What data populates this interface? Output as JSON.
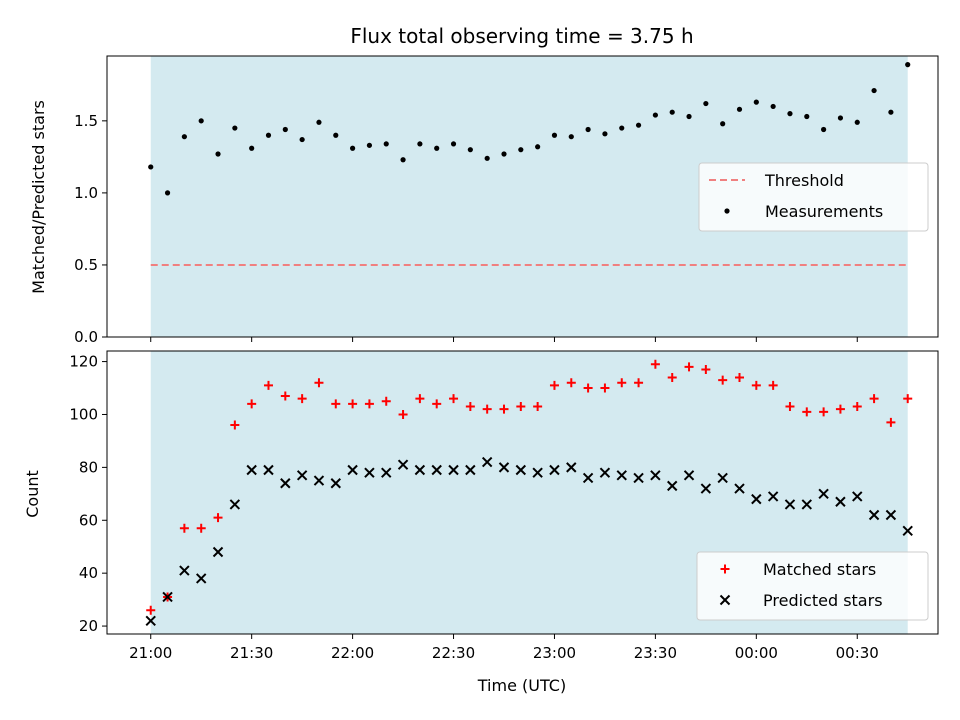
{
  "chart_data": {
    "title": "Flux total observing time = 3.75 h",
    "xlabel": "Time (UTC)",
    "x_tick_labels": [
      "21:00",
      "21:30",
      "22:00",
      "22:30",
      "23:00",
      "23:30",
      "00:00",
      "00:30"
    ],
    "observing_window": [
      "21:00",
      "00:45"
    ],
    "colors": {
      "window": "#d4eaf0",
      "threshold": "#f08080",
      "measurements": "#000000",
      "matched": "#ff0000",
      "predicted": "#000000"
    },
    "charts": [
      {
        "type": "scatter",
        "ylabel": "Matched/Predicted stars",
        "ylim": [
          0,
          1.95
        ],
        "y_ticks": [
          0,
          0.5,
          1.0,
          1.5
        ],
        "y_tick_labels": [
          "0.0",
          "0.5",
          "1.0",
          "1.5"
        ],
        "legend_position": "center-right",
        "threshold": {
          "name": "Threshold",
          "value": 0.5
        },
        "series": [
          {
            "name": "Measurements",
            "x": [
              "21:00",
              "21:05",
              "21:10",
              "21:15",
              "21:20",
              "21:25",
              "21:30",
              "21:35",
              "21:40",
              "21:45",
              "21:50",
              "21:55",
              "22:00",
              "22:05",
              "22:10",
              "22:15",
              "22:20",
              "22:25",
              "22:30",
              "22:35",
              "22:40",
              "22:45",
              "22:50",
              "22:55",
              "23:00",
              "23:05",
              "23:10",
              "23:15",
              "23:20",
              "23:25",
              "23:30",
              "23:35",
              "23:40",
              "23:45",
              "23:50",
              "23:55",
              "00:00",
              "00:05",
              "00:10",
              "00:15",
              "00:20",
              "00:25",
              "00:30",
              "00:35",
              "00:40",
              "00:45"
            ],
            "values": [
              1.18,
              1.0,
              1.39,
              1.5,
              1.27,
              1.45,
              1.31,
              1.4,
              1.44,
              1.37,
              1.49,
              1.4,
              1.31,
              1.33,
              1.34,
              1.23,
              1.34,
              1.31,
              1.34,
              1.3,
              1.24,
              1.27,
              1.3,
              1.32,
              1.4,
              1.39,
              1.44,
              1.41,
              1.45,
              1.47,
              1.54,
              1.56,
              1.53,
              1.62,
              1.48,
              1.58,
              1.63,
              1.6,
              1.55,
              1.53,
              1.44,
              1.52,
              1.49,
              1.71,
              1.56,
              1.89
            ]
          }
        ]
      },
      {
        "type": "scatter",
        "ylabel": "Count",
        "ylim": [
          17,
          124
        ],
        "y_ticks": [
          20,
          40,
          60,
          80,
          100,
          120
        ],
        "y_tick_labels": [
          "20",
          "40",
          "60",
          "80",
          "100",
          "120"
        ],
        "legend_position": "lower-right",
        "series": [
          {
            "name": "Matched stars",
            "marker": "+",
            "x": [
              "21:00",
              "21:05",
              "21:10",
              "21:15",
              "21:20",
              "21:25",
              "21:30",
              "21:35",
              "21:40",
              "21:45",
              "21:50",
              "21:55",
              "22:00",
              "22:05",
              "22:10",
              "22:15",
              "22:20",
              "22:25",
              "22:30",
              "22:35",
              "22:40",
              "22:45",
              "22:50",
              "22:55",
              "23:00",
              "23:05",
              "23:10",
              "23:15",
              "23:20",
              "23:25",
              "23:30",
              "23:35",
              "23:40",
              "23:45",
              "23:50",
              "23:55",
              "00:00",
              "00:05",
              "00:10",
              "00:15",
              "00:20",
              "00:25",
              "00:30",
              "00:35",
              "00:40",
              "00:45"
            ],
            "values": [
              26,
              31,
              57,
              57,
              61,
              96,
              104,
              111,
              107,
              106,
              112,
              104,
              104,
              104,
              105,
              100,
              106,
              104,
              106,
              103,
              102,
              102,
              103,
              103,
              111,
              112,
              110,
              110,
              112,
              112,
              119,
              114,
              118,
              117,
              113,
              114,
              111,
              111,
              103,
              101,
              101,
              102,
              103,
              106,
              97,
              106
            ]
          },
          {
            "name": "Predicted stars",
            "marker": "x",
            "x": [
              "21:00",
              "21:05",
              "21:10",
              "21:15",
              "21:20",
              "21:25",
              "21:30",
              "21:35",
              "21:40",
              "21:45",
              "21:50",
              "21:55",
              "22:00",
              "22:05",
              "22:10",
              "22:15",
              "22:20",
              "22:25",
              "22:30",
              "22:35",
              "22:40",
              "22:45",
              "22:50",
              "22:55",
              "23:00",
              "23:05",
              "23:10",
              "23:15",
              "23:20",
              "23:25",
              "23:30",
              "23:35",
              "23:40",
              "23:45",
              "23:50",
              "23:55",
              "00:00",
              "00:05",
              "00:10",
              "00:15",
              "00:20",
              "00:25",
              "00:30",
              "00:35",
              "00:40",
              "00:45"
            ],
            "values": [
              22,
              31,
              41,
              38,
              48,
              66,
              79,
              79,
              74,
              77,
              75,
              74,
              79,
              78,
              78,
              81,
              79,
              79,
              79,
              79,
              82,
              80,
              79,
              78,
              79,
              80,
              76,
              78,
              77,
              76,
              77,
              73,
              77,
              72,
              76,
              72,
              68,
              69,
              66,
              66,
              70,
              67,
              69,
              62,
              62,
              56
            ]
          }
        ]
      }
    ]
  }
}
